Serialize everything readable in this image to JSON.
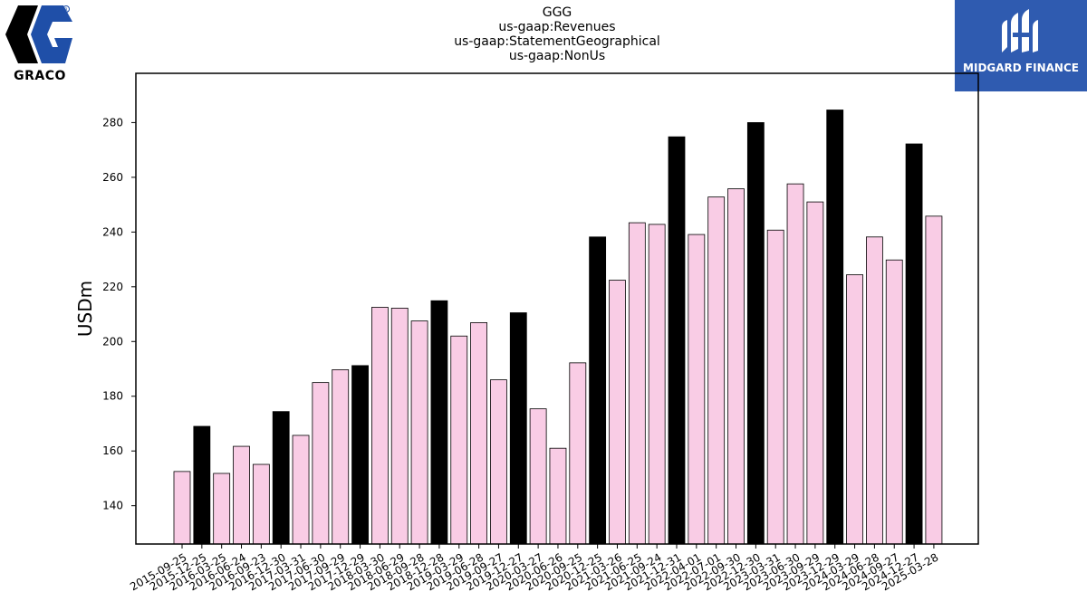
{
  "header": {
    "title_lines": [
      "GGG",
      "us-gaap:Revenues",
      "us-gaap:StatementGeographical",
      "us-gaap:NonUs"
    ],
    "logo_left_text": "GRACO",
    "logo_right_text": "MIDGARD FINANCE"
  },
  "colors": {
    "bar_light": "#f9cce5",
    "bar_dark": "#000000",
    "logo_left_blue": "#1f4fa8",
    "logo_right_bg": "#2f5bb0"
  },
  "chart_data": {
    "type": "bar",
    "title": "GGG us-gaap:Revenues us-gaap:StatementGeographical us-gaap:NonUs",
    "xlabel": "",
    "ylabel": "USDm",
    "ylim": [
      126,
      298
    ],
    "yticks": [
      140,
      160,
      180,
      200,
      220,
      240,
      260,
      280
    ],
    "grid": false,
    "categories": [
      "2015-09-25",
      "2015-12-25",
      "2016-03-25",
      "2016-06-24",
      "2016-09-23",
      "2016-12-30",
      "2017-03-31",
      "2017-06-30",
      "2017-09-29",
      "2017-12-29",
      "2018-03-30",
      "2018-06-29",
      "2018-09-28",
      "2018-12-28",
      "2019-03-29",
      "2019-06-28",
      "2019-09-27",
      "2019-12-27",
      "2020-03-27",
      "2020-06-26",
      "2020-09-25",
      "2020-12-25",
      "2021-03-26",
      "2021-06-25",
      "2021-09-24",
      "2021-12-31",
      "2022-04-01",
      "2022-07-01",
      "2022-09-30",
      "2022-12-30",
      "2023-03-31",
      "2023-06-30",
      "2023-09-29",
      "2023-12-29",
      "2024-03-29",
      "2024-06-28",
      "2024-09-27",
      "2024-12-27",
      "2025-03-28"
    ],
    "values": [
      152.5,
      169.0,
      151.8,
      161.7,
      155.1,
      174.4,
      165.7,
      185.0,
      189.7,
      191.2,
      212.5,
      212.2,
      207.5,
      214.9,
      202.0,
      206.9,
      186.0,
      210.5,
      175.4,
      161.0,
      192.2,
      238.2,
      222.4,
      243.4,
      242.8,
      274.8,
      239.1,
      252.8,
      255.8,
      280.0,
      240.7,
      257.6,
      251.0,
      284.6,
      224.4,
      238.2,
      229.8,
      272.2,
      245.8
    ],
    "highlighted": [
      false,
      true,
      false,
      false,
      false,
      true,
      false,
      false,
      false,
      true,
      false,
      false,
      false,
      true,
      false,
      false,
      false,
      true,
      false,
      false,
      false,
      true,
      false,
      false,
      false,
      true,
      false,
      false,
      false,
      true,
      false,
      false,
      false,
      true,
      false,
      false,
      false,
      true,
      false
    ]
  }
}
